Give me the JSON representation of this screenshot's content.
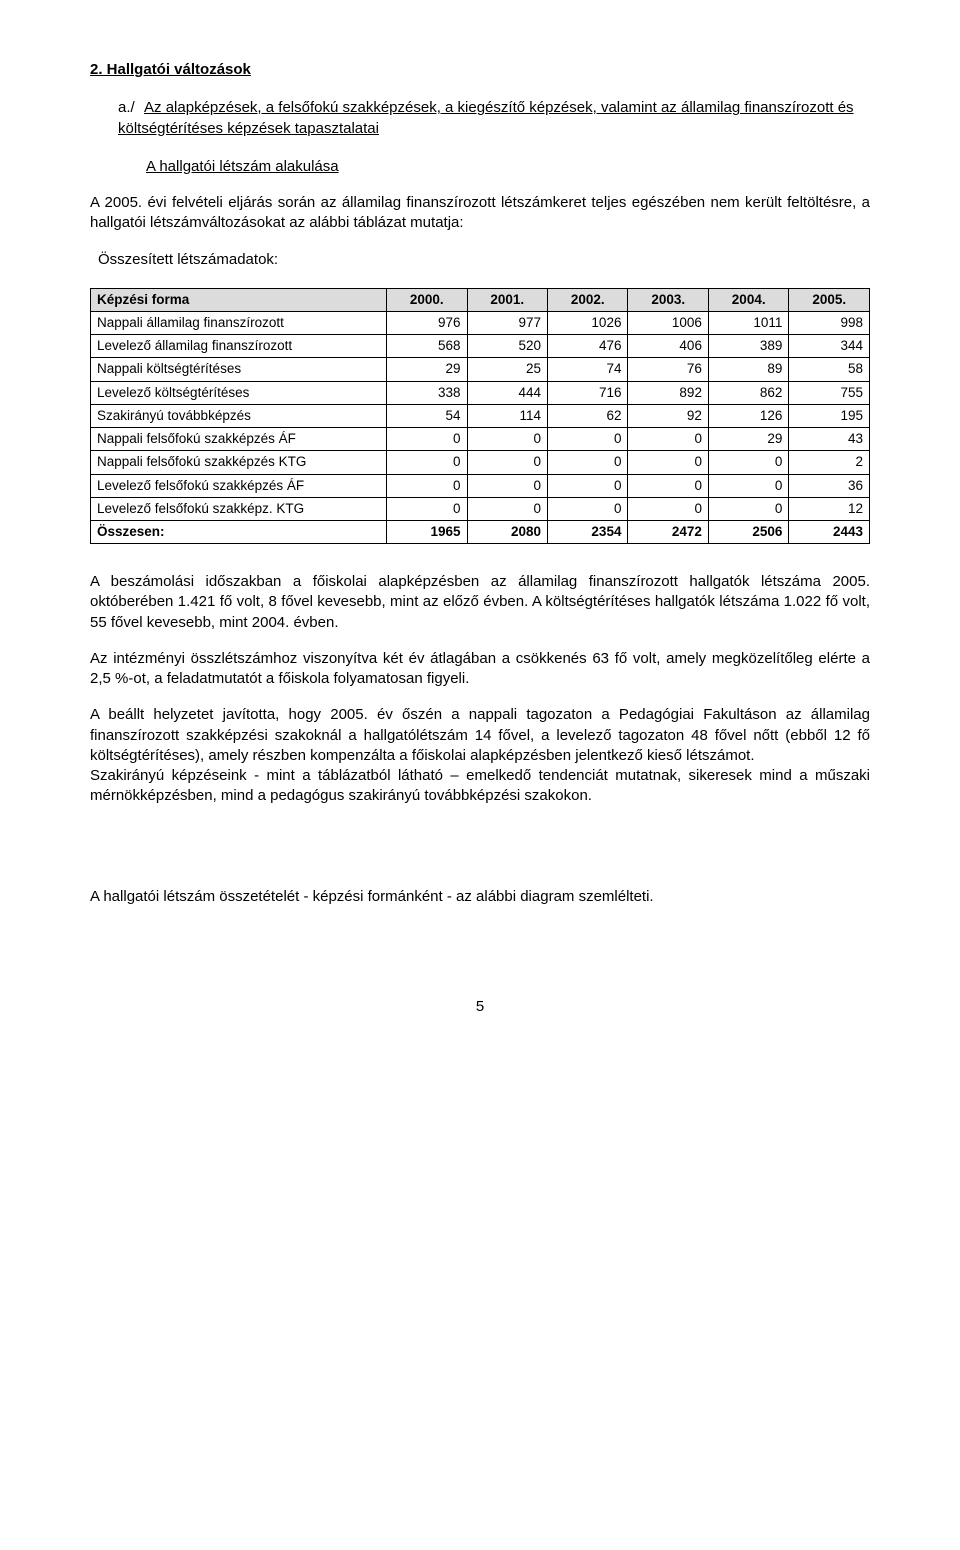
{
  "heading": "2.  Hallgatói változások",
  "subitem": {
    "label": "a./",
    "desc": "Az alapképzések, a felsőfokú szakképzések, a kiegészítő képzések, valamint az államilag finanszírozott és költségtérítéses képzések tapasztalatai"
  },
  "subsub": "A hallgatói létszám alakulása",
  "intro_para": "A 2005. évi felvételi eljárás során az államilag finanszírozott létszámkeret teljes egészében nem került feltöltésre, a hallgatói létszámváltozásokat az alábbi táblázat mutatja:",
  "table_caption": "Összesített létszámadatok:",
  "table": {
    "header_label": "Képzési forma",
    "columns": [
      "2000.",
      "2001.",
      "2002.",
      "2003.",
      "2004.",
      "2005."
    ],
    "rows": [
      {
        "label": "Nappali államilag finanszírozott",
        "cells": [
          "976",
          "977",
          "1026",
          "1006",
          "1011",
          "998"
        ]
      },
      {
        "label": "Levelező államilag finanszírozott",
        "cells": [
          "568",
          "520",
          "476",
          "406",
          "389",
          "344"
        ]
      },
      {
        "label": "Nappali költségtérítéses",
        "cells": [
          "29",
          "25",
          "74",
          "76",
          "89",
          "58"
        ]
      },
      {
        "label": "Levelező költségtérítéses",
        "cells": [
          "338",
          "444",
          "716",
          "892",
          "862",
          "755"
        ]
      },
      {
        "label": "Szakirányú továbbképzés",
        "cells": [
          "54",
          "114",
          "62",
          "92",
          "126",
          "195"
        ]
      },
      {
        "label": "Nappali felsőfokú szakképzés ÁF",
        "cells": [
          "0",
          "0",
          "0",
          "0",
          "29",
          "43"
        ]
      },
      {
        "label": "Nappali felsőfokú szakképzés KTG",
        "cells": [
          "0",
          "0",
          "0",
          "0",
          "0",
          "2"
        ]
      },
      {
        "label": "Levelező felsőfokú szakképzés ÁF",
        "cells": [
          "0",
          "0",
          "0",
          "0",
          "0",
          "36"
        ]
      },
      {
        "label": "Levelező felsőfokú szakképz. KTG",
        "cells": [
          "0",
          "0",
          "0",
          "0",
          "0",
          "12"
        ]
      }
    ],
    "total": {
      "label": "Összesen:",
      "cells": [
        "1965",
        "2080",
        "2354",
        "2472",
        "2506",
        "2443"
      ]
    }
  },
  "para1": "A beszámolási időszakban a főiskolai alapképzésben az államilag finanszírozott hallgatók létszáma 2005. októberében 1.421 fő volt, 8 fővel kevesebb, mint az előző évben. A költségtérítéses hallgatók létszáma 1.022 fő volt, 55 fővel kevesebb, mint 2004. évben.",
  "para2": "Az intézményi összlétszámhoz viszonyítva két év átlagában a csökkenés 63 fő volt, amely megközelítőleg elérte a 2,5 %-ot, a feladatmutatót a főiskola folyamatosan figyeli.",
  "para3": "A beállt helyzetet javította, hogy 2005. év őszén a nappali tagozaton a Pedagógiai Fakultáson az államilag finanszírozott szakképzési szakoknál a hallgatólétszám 14 fővel, a levelező tagozaton 48 fővel nőtt (ebből 12 fő költségtérítéses), amely részben kompenzálta a főiskolai alapképzésben jelentkező kieső létszámot.",
  "para4": "Szakirányú képzéseink - mint a táblázatból látható – emelkedő tendenciát mutatnak, sikeresek mind a műszaki mérnökképzésben, mind a pedagógus szakirányú továbbképzési szakokon.",
  "footer_para": "A hallgatói létszám összetételét - képzési formánként - az alábbi diagram szemlélteti.",
  "page_number": "5"
}
